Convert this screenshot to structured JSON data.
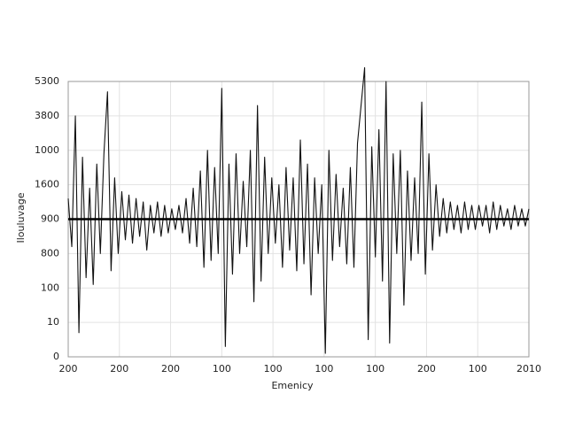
{
  "chart_data": {
    "type": "line",
    "x_label": "Emenicy",
    "y_label": "Ilouluvage",
    "color": "#111111",
    "hline": 4,
    "grid": true,
    "xlim": [
      0,
      9
    ],
    "xticks": [
      {
        "value": 0,
        "label": "200"
      },
      {
        "value": 1,
        "label": "200"
      },
      {
        "value": 2,
        "label": "200"
      },
      {
        "value": 3,
        "label": "100"
      },
      {
        "value": 4,
        "label": "100"
      },
      {
        "value": 5,
        "label": "100"
      },
      {
        "value": 6,
        "label": "100"
      },
      {
        "value": 7,
        "label": "200"
      },
      {
        "value": 8,
        "label": "100"
      },
      {
        "value": 9,
        "label": "2010"
      }
    ],
    "ylim": [
      0,
      8
    ],
    "yticks": [
      {
        "value": 0,
        "label": "0"
      },
      {
        "value": 1,
        "label": "10"
      },
      {
        "value": 2,
        "label": "100"
      },
      {
        "value": 3,
        "label": "800"
      },
      {
        "value": 4,
        "label": "900"
      },
      {
        "value": 5,
        "label": "1600"
      },
      {
        "value": 6,
        "label": "1000"
      },
      {
        "value": 7,
        "label": "3800"
      },
      {
        "value": 8,
        "label": "5300"
      }
    ],
    "values": [
      4.6,
      3.2,
      7.0,
      0.7,
      5.8,
      2.3,
      4.9,
      2.1,
      5.6,
      3.0,
      5.9,
      7.7,
      2.5,
      5.2,
      3.0,
      4.8,
      3.4,
      4.7,
      3.3,
      4.6,
      3.5,
      4.5,
      3.1,
      4.4,
      3.6,
      4.5,
      3.5,
      4.4,
      3.6,
      4.3,
      3.7,
      4.4,
      3.6,
      4.6,
      3.3,
      4.9,
      3.2,
      5.4,
      2.6,
      6.0,
      2.8,
      5.5,
      3.0,
      7.8,
      0.3,
      5.6,
      2.4,
      5.9,
      3.0,
      5.1,
      3.2,
      6.0,
      1.6,
      7.3,
      2.2,
      5.8,
      3.0,
      5.2,
      3.3,
      5.0,
      2.6,
      5.5,
      3.1,
      5.2,
      2.5,
      6.3,
      2.7,
      5.6,
      1.8,
      5.2,
      3.0,
      5.0,
      0.1,
      6.0,
      2.8,
      5.3,
      3.2,
      4.9,
      2.7,
      5.5,
      2.6,
      6.2,
      7.3,
      8.4,
      0.5,
      6.1,
      2.9,
      6.6,
      2.2,
      8.0,
      0.4,
      5.9,
      3.0,
      6.0,
      1.5,
      5.4,
      2.8,
      5.2,
      3.0,
      7.4,
      2.4,
      5.9,
      3.1,
      5.0,
      3.5,
      4.6,
      3.6,
      4.5,
      3.7,
      4.4,
      3.6,
      4.5,
      3.7,
      4.4,
      3.7,
      4.4,
      3.8,
      4.4,
      3.6,
      4.5,
      3.7,
      4.4,
      3.8,
      4.3,
      3.7,
      4.4,
      3.8,
      4.3,
      3.8,
      4.3
    ]
  }
}
